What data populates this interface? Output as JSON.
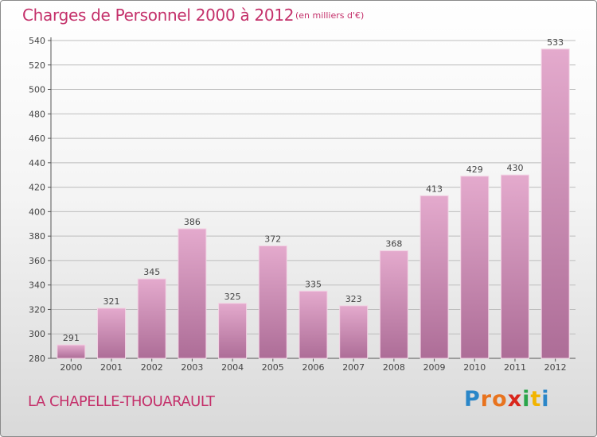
{
  "header": {
    "title": "Charges de Personnel 2000 à 2012",
    "unit_note": "(en milliers d'€)"
  },
  "footer": {
    "commune": "LA CHAPELLE-THOUARAULT",
    "logo_text": "Proxiti"
  },
  "colors": {
    "accent": "#c4306a",
    "bar_top": "#e2a6cb",
    "bar_bottom": "#b0709a"
  },
  "chart_data": {
    "type": "bar",
    "title": "Charges de Personnel 2000 à 2012",
    "subtitle": "(en milliers d'€)",
    "categories": [
      "2000",
      "2001",
      "2002",
      "2003",
      "2004",
      "2005",
      "2006",
      "2007",
      "2008",
      "2009",
      "2010",
      "2011",
      "2012"
    ],
    "values": [
      291,
      321,
      345,
      386,
      325,
      372,
      335,
      323,
      368,
      413,
      429,
      430,
      533
    ],
    "ylim": [
      280,
      540
    ],
    "yticks": [
      280,
      300,
      320,
      340,
      360,
      380,
      400,
      420,
      440,
      460,
      480,
      500,
      520,
      540
    ],
    "grid": true,
    "data_labels": true
  }
}
